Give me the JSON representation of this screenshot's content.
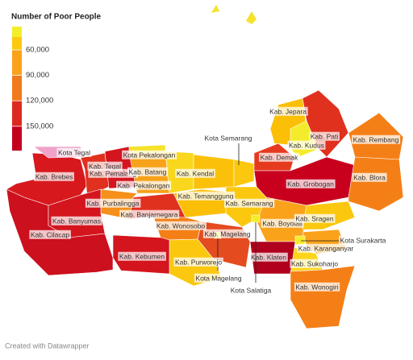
{
  "legend": {
    "title": "Number of Poor People",
    "ticks": [
      {
        "value": 60000,
        "label": "60,000"
      },
      {
        "value": 90000,
        "label": "90,000"
      },
      {
        "value": 120000,
        "label": "120,000"
      },
      {
        "value": 150000,
        "label": "150,000"
      }
    ],
    "colors": [
      "#f2ef2a",
      "#fcc90f",
      "#fba21b",
      "#f07a1a",
      "#dc2a1e",
      "#c4001f"
    ]
  },
  "regions": [
    {
      "label": "Kab. Cilacap",
      "color": "#cc101e"
    },
    {
      "label": "Kab. Brebes",
      "color": "#d7191e"
    },
    {
      "label": "Kota Tegal",
      "color": "#f0a2c8"
    },
    {
      "label": "Kab. Tegal",
      "color": "#e0301e"
    },
    {
      "label": "Kab. Pemalang",
      "color": "#d4151e"
    },
    {
      "label": "Kab. Pekalongan",
      "color": "#f7a21a"
    },
    {
      "label": "Kota Pekalongan",
      "color": "#f6e22a"
    },
    {
      "label": "Kab. Batang",
      "color": "#f9d71c"
    },
    {
      "label": "Kab. Kendal",
      "color": "#fbc10a"
    },
    {
      "label": "Kota Semarang",
      "color": "#fbc80f"
    },
    {
      "label": "Kab. Demak",
      "color": "#e63a1e"
    },
    {
      "label": "Kab. Jepara",
      "color": "#fbbf08"
    },
    {
      "label": "Kab. Kudus",
      "color": "#f4ec2a"
    },
    {
      "label": "Kab. Pati",
      "color": "#e0301e"
    },
    {
      "label": "Kab. Rembang",
      "color": "#f57f17"
    },
    {
      "label": "Kab. Grobogan",
      "color": "#c8001e"
    },
    {
      "label": "Kab. Blora",
      "color": "#f57f17"
    },
    {
      "label": "Kab. Temanggung",
      "color": "#fbbf08"
    },
    {
      "label": "Kab. Semarang",
      "color": "#fbc80f"
    },
    {
      "label": "Kab. Boyolali",
      "color": "#fba21b"
    },
    {
      "label": "Kab. Sragen",
      "color": "#fbc80f"
    },
    {
      "label": "Kab. Karanganyar",
      "color": "#fba21b"
    },
    {
      "label": "Kota Surakarta",
      "color": "#f4ec2a"
    },
    {
      "label": "Kab. Sukoharjo",
      "color": "#fcd51b"
    },
    {
      "label": "Kab. Klaten",
      "color": "#b0001e"
    },
    {
      "label": "Kab. Wonogiri",
      "color": "#f57f17"
    },
    {
      "label": "Kab. Magelang",
      "color": "#e44b1e"
    },
    {
      "label": "Kota Magelang",
      "color": "#f4ec2a"
    },
    {
      "label": "Kota Salatiga",
      "color": "#f4ec2a"
    },
    {
      "label": "Kab. Wonosobo",
      "color": "#f57f17"
    },
    {
      "label": "Kab. Purworejo",
      "color": "#fbc80f"
    },
    {
      "label": "Kab. Kebumen",
      "color": "#d4151e"
    },
    {
      "label": "Kab. Banjarnegara",
      "color": "#e0301e"
    },
    {
      "label": "Kab. Purbalingga",
      "color": "#f5901a"
    },
    {
      "label": "Kab. Banyumas",
      "color": "#d4151e"
    }
  ],
  "footer": "Created with Datawrapper"
}
